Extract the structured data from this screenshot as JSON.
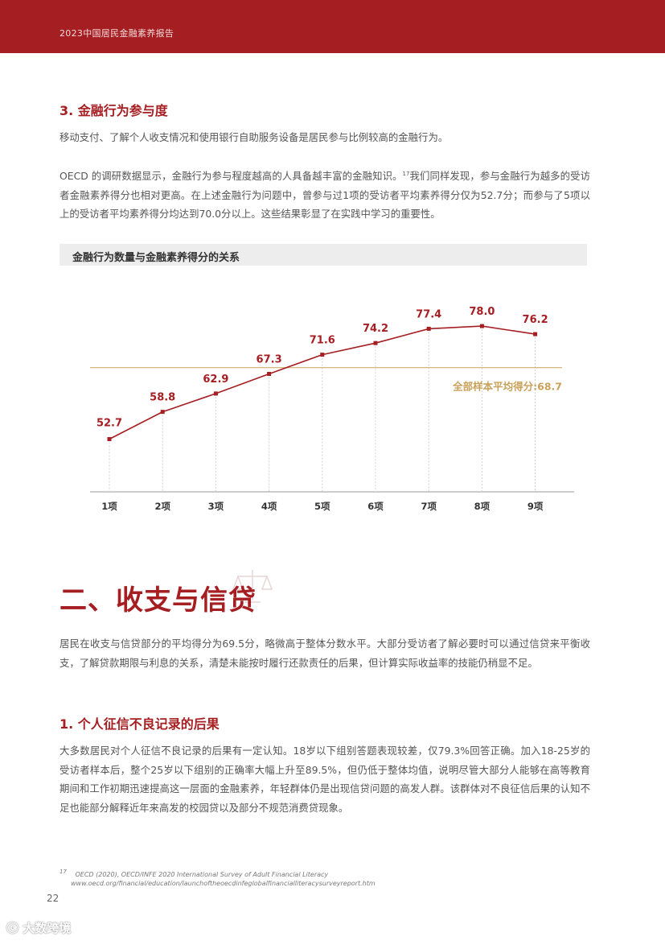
{
  "header": {
    "title": "2023中国居民金融素养报告"
  },
  "section3": {
    "heading": "3.  金融行为参与度",
    "para1": "移动支付、了解个人收支情况和使用银行自助服务设备是居民参与比例较高的金融行为。",
    "para2_a": "OECD 的调研数据显示，金融行为参与程度越高的人具备越丰富的金融知识。",
    "para2_ref": "17",
    "para2_b": "我们同样发现，参与金融行为越多的受访者金融素养得分也相对更高。在上述金融行为问题中，曾参与过1项的受访者平均素养得分仅为52.7分；而参与了5项以上的受访者平均素养得分均达到70.0分以上。这些结果彰显了在实践中学习的重要性。"
  },
  "chart_data": {
    "type": "line",
    "title": "金融行为数量与金融素养得分的关系",
    "categories": [
      "1项",
      "2项",
      "3项",
      "4项",
      "5项",
      "6项",
      "7项",
      "8项",
      "9项"
    ],
    "values": [
      52.7,
      58.8,
      62.9,
      67.3,
      71.6,
      74.2,
      77.4,
      78.0,
      76.2
    ],
    "value_labels": [
      "52.7",
      "58.8",
      "62.9",
      "67.3",
      "71.6",
      "74.2",
      "77.4",
      "78.0",
      "76.2"
    ],
    "reference_line": {
      "value": 68.7,
      "label": "全部样本平均得分:68.7"
    },
    "ylim": [
      40,
      85
    ],
    "colors": {
      "line": "#a51e22",
      "reference": "#c9a15a",
      "label": "#a51e22"
    }
  },
  "section2": {
    "heading": "二、收支与信贷",
    "para": "居民在收支与信贷部分的平均得分为69.5分，略微高于整体分数水平。大部分受访者了解必要时可以通过信贷来平衡收支，了解贷款期限与利息的关系，清楚未能按时履行还款责任的后果，但计算实际收益率的技能仍稍显不足。"
  },
  "section2_1": {
    "heading": "1.  个人征信不良记录的后果",
    "para": " 大多数居民对个人征信不良记录的后果有一定认知。18岁以下组别答题表现较差，仅79.3%回答正确。加入18-25岁的受访者样本后，整个25岁以下组别的正确率大幅上升至89.5%，但仍低于整体均值，说明尽管大部分人能够在高等教育期间和工作初期迅速提高这一层面的金融素养，年轻群体仍是出现信贷问题的高发人群。该群体对不良征信后果的认知不足也能部分解释近年来高发的校园贷以及部分不规范消费贷现象。"
  },
  "footnote": {
    "ref": "17",
    "text": "OECD (2020), OECD/INFE 2020 International Survey of Adult Financial Literacy",
    "url": "www.oecd.org/financial/education/launchoftheoecdinfeglobalfinancialliteracysurveyreport.htm"
  },
  "page_number": "22",
  "watermark": "大数跨境",
  "icons": {
    "scale": "scale-icon",
    "watermark_logo": "logo-icon"
  }
}
